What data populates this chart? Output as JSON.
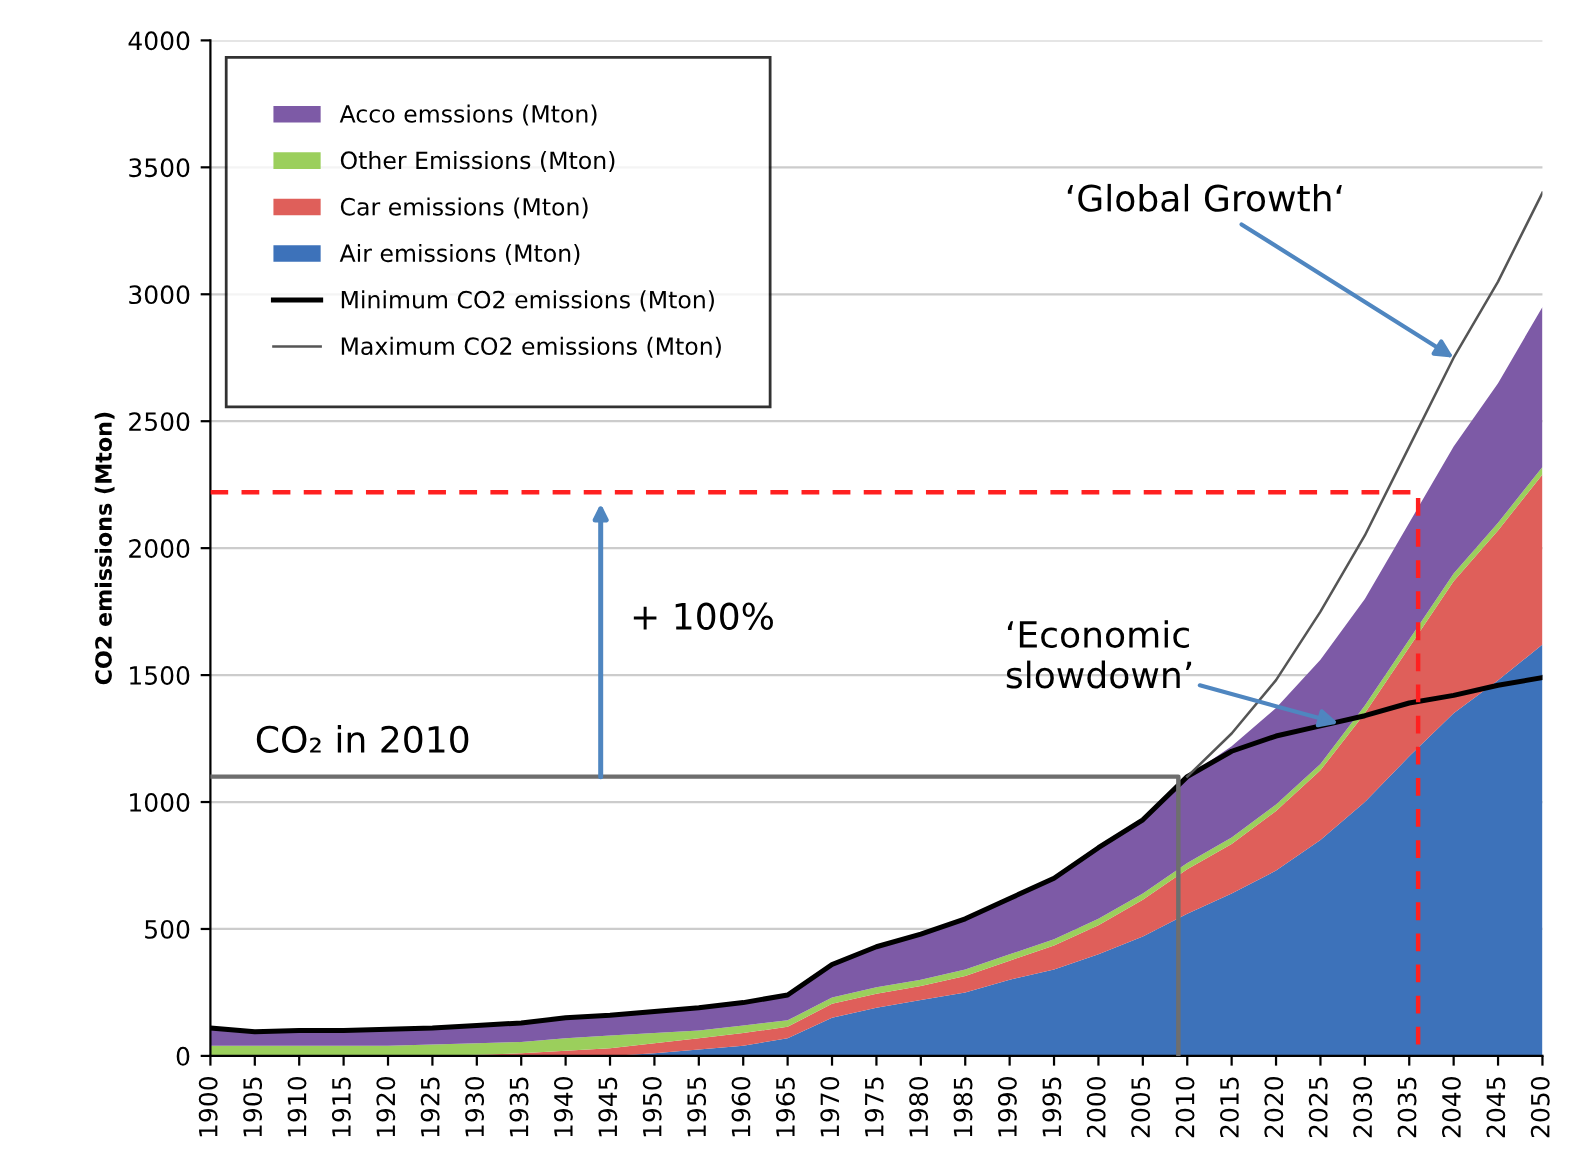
{
  "chart_data": {
    "type": "area",
    "stacked": true,
    "ylabel": "CO2 emissions (Mton)",
    "x": [
      1900,
      1905,
      1910,
      1915,
      1920,
      1925,
      1930,
      1935,
      1940,
      1945,
      1950,
      1955,
      1960,
      1965,
      1970,
      1975,
      1980,
      1985,
      1990,
      1995,
      2000,
      2005,
      2010,
      2015,
      2020,
      2025,
      2030,
      2035,
      2040,
      2045,
      2050
    ],
    "xlim": [
      1900,
      2050
    ],
    "xticks": [
      1900,
      1905,
      1910,
      1915,
      1920,
      1925,
      1930,
      1935,
      1940,
      1945,
      1950,
      1955,
      1960,
      1965,
      1970,
      1975,
      1980,
      1985,
      1990,
      1995,
      2000,
      2005,
      2010,
      2015,
      2020,
      2025,
      2030,
      2035,
      2040,
      2045,
      2050
    ],
    "ylim": [
      0,
      4000
    ],
    "yticks": [
      0,
      500,
      1000,
      1500,
      2000,
      2500,
      3000,
      3500,
      4000
    ],
    "grid": "y",
    "legend": "top left",
    "series": [
      {
        "name": "Air emissions (Mton)",
        "color": "#3d72ba",
        "values": [
          0,
          0,
          0,
          0,
          0,
          0,
          0,
          0,
          0,
          0,
          10,
          25,
          40,
          70,
          150,
          190,
          220,
          250,
          300,
          340,
          400,
          470,
          560,
          640,
          730,
          850,
          1000,
          1180,
          1350,
          1480,
          1620
        ]
      },
      {
        "name": "Car emissions (Mton)",
        "color": "#df5f5a",
        "values": [
          0,
          0,
          0,
          0,
          0,
          0,
          5,
          10,
          20,
          30,
          40,
          45,
          50,
          45,
          55,
          55,
          55,
          65,
          75,
          95,
          115,
          145,
          175,
          195,
          235,
          275,
          350,
          430,
          520,
          590,
          670
        ]
      },
      {
        "name": "Other Emissions (Mton)",
        "color": "#9bcf5c",
        "values": [
          40,
          40,
          40,
          40,
          40,
          45,
          45,
          45,
          50,
          50,
          40,
          30,
          30,
          25,
          25,
          25,
          25,
          25,
          25,
          25,
          25,
          25,
          25,
          25,
          25,
          25,
          30,
          30,
          30,
          30,
          30
        ]
      },
      {
        "name": "Acco emssions (Mton)",
        "color": "#7d5aa6",
        "values": [
          70,
          55,
          60,
          60,
          65,
          65,
          70,
          75,
          80,
          80,
          85,
          90,
          90,
          100,
          130,
          160,
          180,
          200,
          220,
          240,
          280,
          290,
          340,
          360,
          380,
          410,
          420,
          460,
          500,
          550,
          630
        ]
      },
      {
        "name": "Minimum CO2 emissions (Mton)",
        "type": "line",
        "color": "#000000",
        "values": [
          110,
          95,
          100,
          100,
          105,
          110,
          120,
          130,
          150,
          160,
          175,
          190,
          210,
          240,
          360,
          430,
          480,
          540,
          620,
          700,
          820,
          930,
          1100,
          1200,
          1260,
          1300,
          1340,
          1390,
          1420,
          1460,
          1490
        ]
      },
      {
        "name": "Maximum CO2 emissions (Mton)",
        "type": "line",
        "color": "#555555",
        "values": [
          null,
          null,
          null,
          null,
          null,
          null,
          null,
          null,
          null,
          null,
          null,
          null,
          null,
          null,
          null,
          null,
          null,
          null,
          null,
          null,
          null,
          null,
          1100,
          1270,
          1480,
          1750,
          2050,
          2400,
          2750,
          3050,
          3400
        ]
      },
      {
        "type": "line",
        "color": "#6e6e6e",
        "x": [
          1900,
          2009,
          2009
        ],
        "values": [
          1100,
          1100,
          0
        ]
      },
      {
        "type": "line",
        "color": "#ff2020",
        "line_style": "dashed",
        "x": [
          1900,
          2036,
          2036
        ],
        "values": [
          2220,
          2220,
          0
        ]
      }
    ],
    "annotations": [
      {
        "text": "CO₂ in 2010",
        "x": 1905,
        "y": 1100
      },
      "+ 100%",
      {
        "text": "‘Economic\nslowdown’",
        "x": 2027,
        "y": 1310
      },
      {
        "text": "‘Global Growth‘",
        "x": 2040,
        "y": 2750
      }
    ]
  }
}
